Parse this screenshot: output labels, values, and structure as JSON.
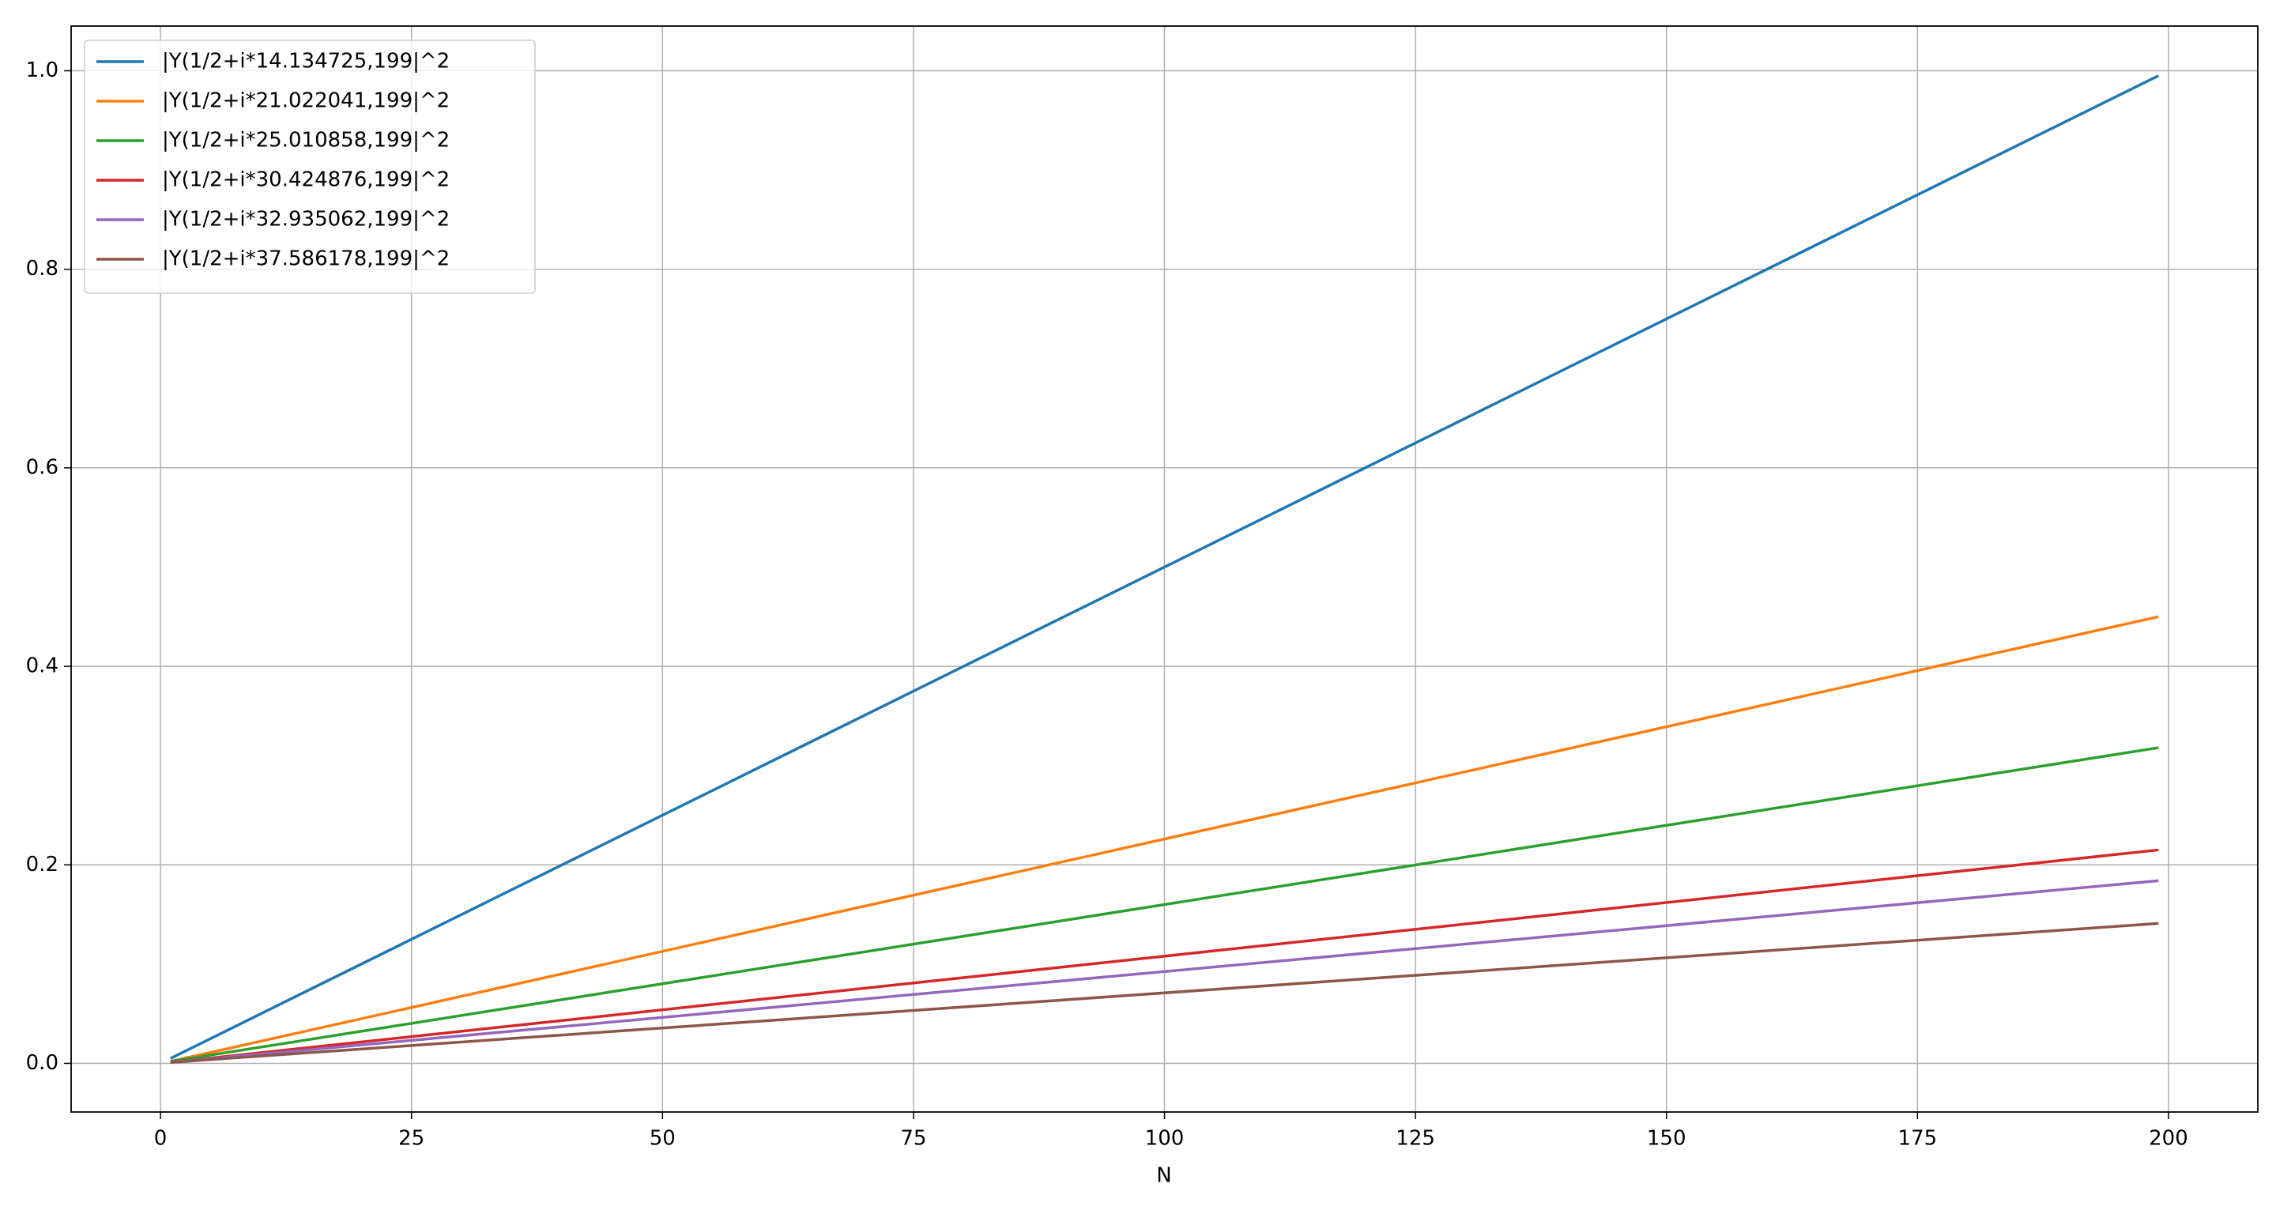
{
  "chart_data": {
    "type": "line",
    "x_label": "N",
    "x": [
      1,
      199
    ],
    "series": [
      {
        "name": "|Y(1/2+i*14.134725,199|^2",
        "color": "#1f77b4",
        "values": [
          0.005,
          0.995
        ]
      },
      {
        "name": "|Y(1/2+i*21.022041,199|^2",
        "color": "#ff7f0e",
        "values": [
          0.002,
          0.45
        ]
      },
      {
        "name": "|Y(1/2+i*25.010858,199|^2",
        "color": "#2ca02c",
        "values": [
          0.002,
          0.318
        ]
      },
      {
        "name": "|Y(1/2+i*30.424876,199|^2",
        "color": "#d62728",
        "values": [
          0.001,
          0.215
        ]
      },
      {
        "name": "|Y(1/2+i*32.935062,199|^2",
        "color": "#9467bd",
        "values": [
          0.001,
          0.184
        ]
      },
      {
        "name": "|Y(1/2+i*37.586178,199|^2",
        "color": "#8c564b",
        "values": [
          0.001,
          0.141
        ]
      }
    ],
    "xlim": [
      -8.9,
      208.9
    ],
    "ylim": [
      -0.049,
      1.045
    ],
    "xticks": [
      0,
      25,
      50,
      75,
      100,
      125,
      150,
      175,
      200
    ],
    "yticks": [
      {
        "value": 0,
        "label": "0.0"
      },
      0.2,
      0.4,
      0.6,
      0.8,
      {
        "value": 1,
        "label": "1.0"
      }
    ],
    "grid": true,
    "legend": "upper left"
  }
}
